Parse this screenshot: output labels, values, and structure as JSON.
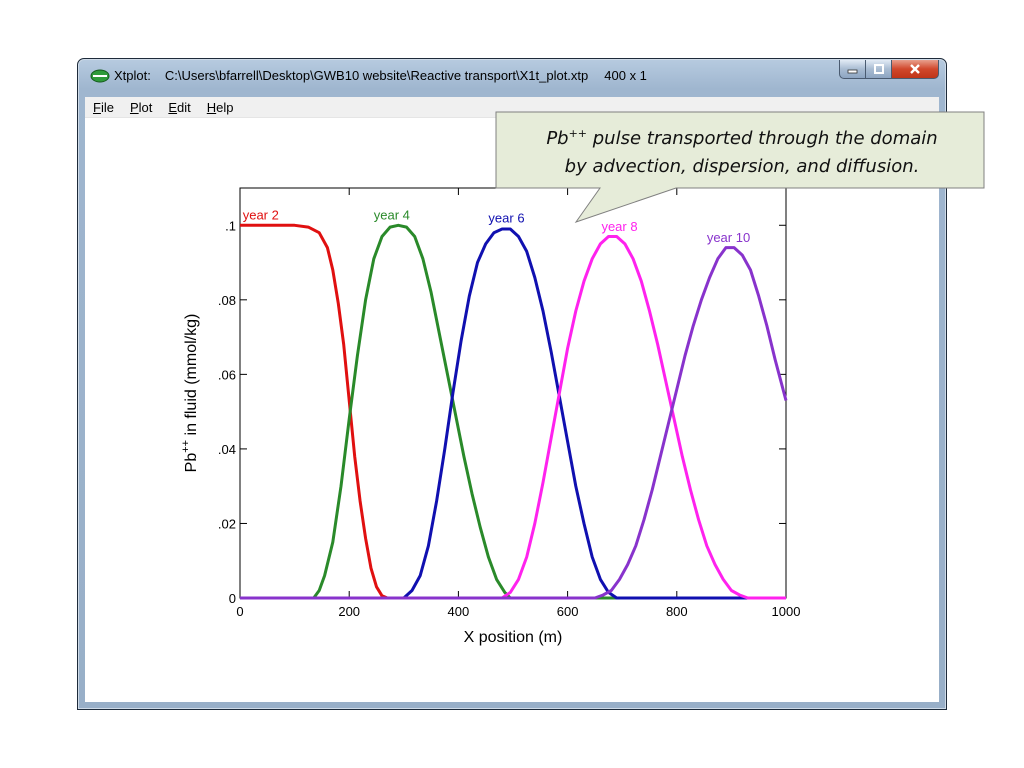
{
  "window": {
    "app_name": "Xtplot:",
    "file_path": "C:\\Users\\bfarrell\\Desktop\\GWB10 website\\Reactive transport\\X1t_plot.xtp",
    "dimensions": "400 x 1",
    "icon": "xtplot-app-icon",
    "caption_buttons": [
      "minimize-icon",
      "maximize-icon",
      "close-icon"
    ]
  },
  "menu": {
    "items": [
      {
        "label": "File",
        "accel": "F"
      },
      {
        "label": "Plot",
        "accel": "P"
      },
      {
        "label": "Edit",
        "accel": "E"
      },
      {
        "label": "Help",
        "accel": "H"
      }
    ]
  },
  "callout": {
    "species": "Pb",
    "charge": "++",
    "line1_rest": " pulse transported through the domain",
    "line2": "by advection, dispersion, and diffusion.",
    "background": "#e6ecd9"
  },
  "chart_data": {
    "type": "line",
    "xlabel": "X position (m)",
    "ylabel_species": "Pb",
    "ylabel_charge": "++",
    "ylabel_rest": " in fluid (mmol/kg)",
    "xlim": [
      0,
      1000
    ],
    "ylim": [
      0,
      0.11
    ],
    "x_ticks": [
      0,
      200,
      400,
      600,
      800,
      1000
    ],
    "x_tick_labels": [
      "0",
      "200",
      "400",
      "600",
      "800",
      "1000"
    ],
    "y_ticks": [
      0,
      0.02,
      0.04,
      0.06,
      0.08,
      0.1
    ],
    "y_tick_labels": [
      "0",
      ".02",
      ".04",
      ".06",
      ".08",
      ".1"
    ],
    "grid": false,
    "series": [
      {
        "name": "year 2",
        "color": "#e01010",
        "label_x": 5,
        "label_y": 0.1015,
        "points": [
          [
            0,
            0.1
          ],
          [
            100,
            0.1
          ],
          [
            125,
            0.0995
          ],
          [
            145,
            0.098
          ],
          [
            160,
            0.094
          ],
          [
            170,
            0.088
          ],
          [
            180,
            0.079
          ],
          [
            190,
            0.068
          ],
          [
            200,
            0.053
          ],
          [
            210,
            0.038
          ],
          [
            220,
            0.026
          ],
          [
            230,
            0.016
          ],
          [
            240,
            0.008
          ],
          [
            250,
            0.003
          ],
          [
            260,
            0.0006
          ],
          [
            270,
            0
          ],
          [
            1000,
            0
          ]
        ]
      },
      {
        "name": "year 4",
        "color": "#2a8a2a",
        "label_x": 245,
        "label_y": 0.1015,
        "points": [
          [
            0,
            0
          ],
          [
            135,
            0
          ],
          [
            145,
            0.002
          ],
          [
            155,
            0.006
          ],
          [
            170,
            0.015
          ],
          [
            185,
            0.03
          ],
          [
            200,
            0.048
          ],
          [
            215,
            0.065
          ],
          [
            230,
            0.08
          ],
          [
            245,
            0.091
          ],
          [
            260,
            0.097
          ],
          [
            275,
            0.0995
          ],
          [
            290,
            0.1
          ],
          [
            305,
            0.0995
          ],
          [
            320,
            0.097
          ],
          [
            335,
            0.091
          ],
          [
            350,
            0.082
          ],
          [
            365,
            0.071
          ],
          [
            380,
            0.06
          ],
          [
            395,
            0.049
          ],
          [
            410,
            0.038
          ],
          [
            425,
            0.028
          ],
          [
            440,
            0.019
          ],
          [
            455,
            0.011
          ],
          [
            470,
            0.005
          ],
          [
            485,
            0.0015
          ],
          [
            495,
            0
          ],
          [
            1000,
            0
          ]
        ]
      },
      {
        "name": "year 6",
        "color": "#1010b0",
        "label_x": 455,
        "label_y": 0.1007,
        "points": [
          [
            0,
            0
          ],
          [
            300,
            0
          ],
          [
            315,
            0.002
          ],
          [
            330,
            0.006
          ],
          [
            345,
            0.014
          ],
          [
            360,
            0.026
          ],
          [
            375,
            0.04
          ],
          [
            390,
            0.055
          ],
          [
            405,
            0.069
          ],
          [
            420,
            0.081
          ],
          [
            435,
            0.09
          ],
          [
            450,
            0.095
          ],
          [
            465,
            0.098
          ],
          [
            480,
            0.099
          ],
          [
            495,
            0.099
          ],
          [
            510,
            0.097
          ],
          [
            525,
            0.093
          ],
          [
            540,
            0.086
          ],
          [
            555,
            0.077
          ],
          [
            570,
            0.066
          ],
          [
            585,
            0.054
          ],
          [
            600,
            0.042
          ],
          [
            615,
            0.03
          ],
          [
            630,
            0.02
          ],
          [
            645,
            0.011
          ],
          [
            660,
            0.005
          ],
          [
            675,
            0.0015
          ],
          [
            690,
            0
          ],
          [
            1000,
            0
          ]
        ]
      },
      {
        "name": "year 8",
        "color": "#ff22ee",
        "label_x": 662,
        "label_y": 0.0985,
        "points": [
          [
            0,
            0
          ],
          [
            480,
            0
          ],
          [
            495,
            0.0015
          ],
          [
            510,
            0.005
          ],
          [
            525,
            0.011
          ],
          [
            540,
            0.02
          ],
          [
            555,
            0.031
          ],
          [
            570,
            0.043
          ],
          [
            585,
            0.055
          ],
          [
            600,
            0.067
          ],
          [
            615,
            0.077
          ],
          [
            630,
            0.085
          ],
          [
            645,
            0.091
          ],
          [
            660,
            0.095
          ],
          [
            675,
            0.097
          ],
          [
            690,
            0.097
          ],
          [
            705,
            0.095
          ],
          [
            720,
            0.091
          ],
          [
            735,
            0.085
          ],
          [
            750,
            0.077
          ],
          [
            765,
            0.068
          ],
          [
            780,
            0.058
          ],
          [
            795,
            0.048
          ],
          [
            810,
            0.038
          ],
          [
            825,
            0.029
          ],
          [
            840,
            0.021
          ],
          [
            855,
            0.014
          ],
          [
            870,
            0.009
          ],
          [
            885,
            0.005
          ],
          [
            900,
            0.002
          ],
          [
            915,
            0.0008
          ],
          [
            930,
            0
          ],
          [
            1000,
            0
          ]
        ]
      },
      {
        "name": "year 10",
        "color": "#8833cc",
        "label_x": 855,
        "label_y": 0.0955,
        "points": [
          [
            0,
            0
          ],
          [
            650,
            0
          ],
          [
            665,
            0.0008
          ],
          [
            680,
            0.002
          ],
          [
            695,
            0.005
          ],
          [
            710,
            0.009
          ],
          [
            725,
            0.014
          ],
          [
            740,
            0.021
          ],
          [
            755,
            0.029
          ],
          [
            770,
            0.038
          ],
          [
            785,
            0.047
          ],
          [
            800,
            0.056
          ],
          [
            815,
            0.065
          ],
          [
            830,
            0.073
          ],
          [
            845,
            0.08
          ],
          [
            860,
            0.086
          ],
          [
            875,
            0.091
          ],
          [
            890,
            0.094
          ],
          [
            905,
            0.094
          ],
          [
            920,
            0.092
          ],
          [
            935,
            0.088
          ],
          [
            950,
            0.081
          ],
          [
            965,
            0.073
          ],
          [
            980,
            0.064
          ],
          [
            1000,
            0.053
          ]
        ]
      }
    ]
  }
}
